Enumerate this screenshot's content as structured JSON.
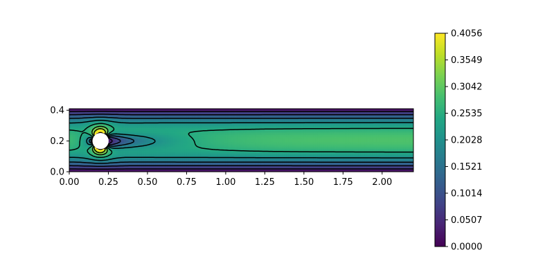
{
  "chart_data": {
    "type": "heatmap",
    "subtype": "filled-contour",
    "title": "",
    "xlabel": "",
    "ylabel": "",
    "xlim": [
      0,
      2.2
    ],
    "ylim": [
      0,
      0.41
    ],
    "x_ticks": [
      0.0,
      0.25,
      0.5,
      0.75,
      1.0,
      1.25,
      1.5,
      1.75,
      2.0
    ],
    "x_tick_labels": [
      "0.00",
      "0.25",
      "0.50",
      "0.75",
      "1.00",
      "1.25",
      "1.50",
      "1.75",
      "2.00"
    ],
    "y_ticks": [
      0.0,
      0.2,
      0.4
    ],
    "y_tick_labels": [
      "0.0",
      "0.2",
      "0.4"
    ],
    "obstacle": {
      "shape": "circle",
      "center": [
        0.2,
        0.2
      ],
      "radius": 0.05
    },
    "field": {
      "description": "velocity magnitude, channel flow past a cylinder",
      "max_velocity": 0.4056,
      "contour_levels": [
        0.05,
        0.1,
        0.15,
        0.2,
        0.25,
        0.3,
        0.35
      ]
    },
    "colorbar": {
      "colormap": "viridis",
      "min": 0.0,
      "max": 0.4056,
      "ticks": [
        0.0,
        0.0507,
        0.1014,
        0.1521,
        0.2028,
        0.2535,
        0.3042,
        0.3549,
        0.4056
      ],
      "tick_labels": [
        "0.0000",
        "0.0507",
        "0.1014",
        "0.1521",
        "0.2028",
        "0.2535",
        "0.3042",
        "0.3549",
        "0.4056"
      ]
    }
  }
}
